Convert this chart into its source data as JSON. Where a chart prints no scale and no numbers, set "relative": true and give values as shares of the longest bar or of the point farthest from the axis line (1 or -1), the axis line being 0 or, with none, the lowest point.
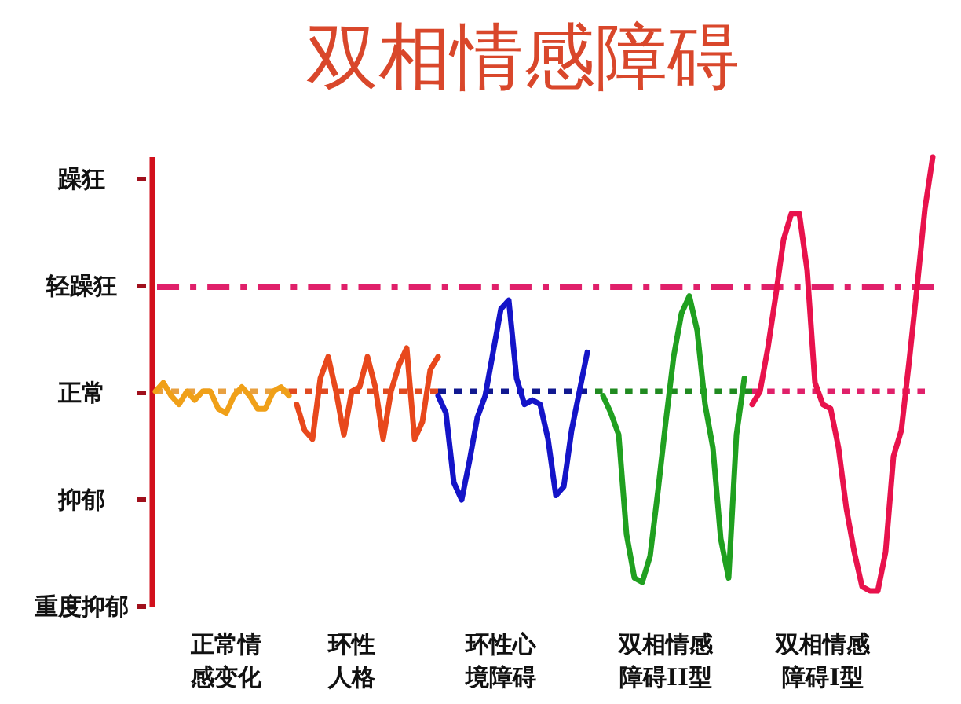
{
  "chart_data": {
    "type": "line",
    "title": "双相情感障碍",
    "relative": true,
    "categories": [
      null,
      null,
      null,
      null,
      null,
      null,
      null,
      null,
      null,
      "正常情感变化",
      null,
      null,
      null,
      null,
      null,
      null,
      null,
      null,
      null,
      null,
      null,
      null,
      null,
      null,
      null,
      "环性人格",
      null,
      null,
      null,
      null,
      null,
      null,
      null,
      null,
      null,
      null,
      null,
      null,
      null,
      null,
      null,
      null,
      null,
      null,
      "环性心境障碍",
      null,
      null,
      null,
      null,
      null,
      null,
      null,
      null,
      null,
      null,
      null,
      null,
      null,
      null,
      null,
      null,
      null,
      null,
      null,
      null,
      "双相情感障碍II型",
      null,
      null,
      null,
      null,
      null,
      null,
      null,
      null,
      null,
      null,
      null,
      null,
      null,
      null,
      null,
      null,
      null,
      null,
      null,
      "双相情感障碍I型",
      null,
      null,
      null,
      null,
      null,
      null,
      null,
      null,
      null,
      null,
      null,
      null,
      null,
      null
    ],
    "annotations": [
      "躁狂",
      "轻躁狂",
      "正常",
      "抑郁",
      "重度抑郁"
    ],
    "ref_lines": [
      {
        "axis": "y",
        "value": 0.7,
        "color": "#e0206a",
        "line_style": "dashdot"
      }
    ],
    "series": [
      {
        "color": "#e8a040",
        "line_style": "dotted",
        "values": [
          0.46,
          0.46,
          0.46,
          0.46,
          0.46,
          0.46,
          0.46,
          0.46,
          0.46,
          0.46,
          0.46,
          0.46,
          0.46,
          0.46,
          0.46,
          0.46,
          0.46,
          0.46,
          null,
          null,
          null,
          null,
          null,
          null,
          null,
          null,
          null,
          null,
          null,
          null,
          null,
          null,
          null,
          null,
          null,
          null,
          null,
          null,
          null,
          null,
          null,
          null,
          null,
          null,
          null,
          null,
          null,
          null,
          null,
          null,
          null,
          null,
          null,
          null,
          null,
          null,
          null,
          null,
          null,
          null,
          null,
          null,
          null,
          null,
          null,
          null,
          null,
          null,
          null,
          null,
          null,
          null,
          null,
          null,
          null,
          null,
          null,
          null,
          null,
          null,
          null,
          null,
          null,
          null,
          null,
          null,
          null,
          null,
          null,
          null,
          null,
          null,
          null,
          null,
          null,
          null,
          null,
          null,
          null,
          null
        ]
      },
      {
        "color": "#e04a20",
        "line_style": "dotted",
        "values": [
          null,
          null,
          null,
          null,
          null,
          null,
          null,
          null,
          null,
          null,
          null,
          null,
          null,
          null,
          null,
          null,
          null,
          0.46,
          0.46,
          0.46,
          0.46,
          0.46,
          0.46,
          0.46,
          0.46,
          0.46,
          0.46,
          0.46,
          0.46,
          0.46,
          0.46,
          0.46,
          0.46,
          0.46,
          0.46,
          0.46,
          0.46,
          null,
          null,
          null,
          null,
          null,
          null,
          null,
          null,
          null,
          null,
          null,
          null,
          null,
          null,
          null,
          null,
          null,
          null,
          null,
          null,
          null,
          null,
          null,
          null,
          null,
          null,
          null,
          null,
          null,
          null,
          null,
          null,
          null,
          null,
          null,
          null,
          null,
          null,
          null,
          null,
          null,
          null,
          null,
          null,
          null,
          null,
          null,
          null,
          null,
          null,
          null,
          null,
          null,
          null,
          null,
          null,
          null,
          null,
          null,
          null,
          null,
          null,
          null
        ]
      },
      {
        "color": "#101890",
        "line_style": "dotted",
        "values": [
          null,
          null,
          null,
          null,
          null,
          null,
          null,
          null,
          null,
          null,
          null,
          null,
          null,
          null,
          null,
          null,
          null,
          null,
          null,
          null,
          null,
          null,
          null,
          null,
          null,
          null,
          null,
          null,
          null,
          null,
          null,
          null,
          null,
          null,
          null,
          null,
          0.46,
          0.46,
          0.46,
          0.46,
          0.46,
          0.46,
          0.46,
          0.46,
          0.46,
          0.46,
          0.46,
          0.46,
          0.46,
          0.46,
          0.46,
          0.46,
          0.46,
          0.46,
          0.46,
          0.46,
          null,
          null,
          null,
          null,
          null,
          null,
          null,
          null,
          null,
          null,
          null,
          null,
          null,
          null,
          null,
          null,
          null,
          null,
          null,
          null,
          null,
          null,
          null,
          null,
          null,
          null,
          null,
          null,
          null,
          null,
          null,
          null,
          null,
          null,
          null,
          null,
          null,
          null,
          null,
          null,
          null,
          null,
          null,
          null
        ]
      },
      {
        "color": "#208a20",
        "line_style": "dotted",
        "values": [
          null,
          null,
          null,
          null,
          null,
          null,
          null,
          null,
          null,
          null,
          null,
          null,
          null,
          null,
          null,
          null,
          null,
          null,
          null,
          null,
          null,
          null,
          null,
          null,
          null,
          null,
          null,
          null,
          null,
          null,
          null,
          null,
          null,
          null,
          null,
          null,
          null,
          null,
          null,
          null,
          null,
          null,
          null,
          null,
          null,
          null,
          null,
          null,
          null,
          null,
          null,
          null,
          null,
          null,
          null,
          null,
          0.46,
          0.46,
          0.46,
          0.46,
          0.46,
          0.46,
          0.46,
          0.46,
          0.46,
          0.46,
          0.46,
          0.46,
          0.46,
          0.46,
          0.46,
          0.46,
          0.46,
          0.46,
          0.46,
          0.46,
          0.46,
          null,
          null,
          null,
          null,
          null,
          null,
          null,
          null,
          null,
          null,
          null,
          null,
          null,
          null,
          null,
          null,
          null,
          null,
          null,
          null,
          null,
          null,
          null
        ]
      },
      {
        "color": "#e0206a",
        "line_style": "dotted",
        "values": [
          null,
          null,
          null,
          null,
          null,
          null,
          null,
          null,
          null,
          null,
          null,
          null,
          null,
          null,
          null,
          null,
          null,
          null,
          null,
          null,
          null,
          null,
          null,
          null,
          null,
          null,
          null,
          null,
          null,
          null,
          null,
          null,
          null,
          null,
          null,
          null,
          null,
          null,
          null,
          null,
          null,
          null,
          null,
          null,
          null,
          null,
          null,
          null,
          null,
          null,
          null,
          null,
          null,
          null,
          null,
          null,
          null,
          null,
          null,
          null,
          null,
          null,
          null,
          null,
          null,
          null,
          null,
          null,
          null,
          null,
          null,
          null,
          null,
          null,
          null,
          null,
          0.46,
          0.46,
          0.46,
          0.46,
          0.46,
          0.46,
          0.46,
          0.46,
          0.46,
          0.46,
          0.46,
          0.46,
          0.46,
          0.46,
          0.46,
          0.46,
          0.46,
          0.46,
          0.46,
          0.46,
          0.46,
          0.46,
          0.46,
          null
        ]
      },
      {
        "color": "#f0a018",
        "values": [
          0.46,
          0.48,
          0.45,
          0.43,
          0.46,
          0.44,
          0.46,
          0.46,
          0.42,
          0.41,
          0.45,
          0.47,
          0.45,
          0.42,
          0.42,
          0.46,
          0.47,
          0.45,
          null,
          null,
          null,
          null,
          null,
          null,
          null,
          null,
          null,
          null,
          null,
          null,
          null,
          null,
          null,
          null,
          null,
          null,
          null,
          null,
          null,
          null,
          null,
          null,
          null,
          null,
          null,
          null,
          null,
          null,
          null,
          null,
          null,
          null,
          null,
          null,
          null,
          null,
          null,
          null,
          null,
          null,
          null,
          null,
          null,
          null,
          null,
          null,
          null,
          null,
          null,
          null,
          null,
          null,
          null,
          null,
          null,
          null,
          null,
          null,
          null,
          null,
          null,
          null,
          null,
          null,
          null,
          null,
          null,
          null,
          null,
          null,
          null,
          null,
          null,
          null,
          null,
          null,
          null,
          null,
          null,
          null
        ]
      },
      {
        "color": "#e8481c",
        "values": [
          null,
          null,
          null,
          null,
          null,
          null,
          null,
          null,
          null,
          null,
          null,
          null,
          null,
          null,
          null,
          null,
          null,
          null,
          0.43,
          0.37,
          0.35,
          0.49,
          0.54,
          0.46,
          0.36,
          0.46,
          0.47,
          0.54,
          0.47,
          0.35,
          0.46,
          0.52,
          0.56,
          0.35,
          0.39,
          0.51,
          0.54,
          null,
          null,
          null,
          null,
          null,
          null,
          null,
          null,
          null,
          null,
          null,
          null,
          null,
          null,
          null,
          null,
          null,
          null,
          null,
          null,
          null,
          null,
          null,
          null,
          null,
          null,
          null,
          null,
          null,
          null,
          null,
          null,
          null,
          null,
          null,
          null,
          null,
          null,
          null,
          null,
          null,
          null,
          null,
          null,
          null,
          null,
          null,
          null,
          null,
          null,
          null,
          null,
          null,
          null,
          null,
          null,
          null,
          null,
          null,
          null,
          null,
          null,
          null
        ]
      },
      {
        "color": "#1414c8",
        "values": [
          null,
          null,
          null,
          null,
          null,
          null,
          null,
          null,
          null,
          null,
          null,
          null,
          null,
          null,
          null,
          null,
          null,
          null,
          null,
          null,
          null,
          null,
          null,
          null,
          null,
          null,
          null,
          null,
          null,
          null,
          null,
          null,
          null,
          null,
          null,
          null,
          0.45,
          0.41,
          0.25,
          0.21,
          0.3,
          0.4,
          0.45,
          0.55,
          0.65,
          0.67,
          0.49,
          0.43,
          0.44,
          0.43,
          0.35,
          0.22,
          0.24,
          0.37,
          0.46,
          0.55,
          null,
          null,
          null,
          null,
          null,
          null,
          null,
          null,
          null,
          null,
          null,
          null,
          null,
          null,
          null,
          null,
          null,
          null,
          null,
          null,
          null,
          null,
          null,
          null,
          null,
          null,
          null,
          null,
          null,
          null,
          null,
          null,
          null,
          null,
          null,
          null,
          null,
          null,
          null,
          null,
          null,
          null,
          null,
          null
        ]
      },
      {
        "color": "#20a020",
        "values": [
          null,
          null,
          null,
          null,
          null,
          null,
          null,
          null,
          null,
          null,
          null,
          null,
          null,
          null,
          null,
          null,
          null,
          null,
          null,
          null,
          null,
          null,
          null,
          null,
          null,
          null,
          null,
          null,
          null,
          null,
          null,
          null,
          null,
          null,
          null,
          null,
          null,
          null,
          null,
          null,
          null,
          null,
          null,
          null,
          null,
          null,
          null,
          null,
          null,
          null,
          null,
          null,
          null,
          null,
          null,
          null,
          null,
          0.45,
          0.41,
          0.36,
          0.13,
          0.03,
          0.02,
          0.08,
          0.23,
          0.39,
          0.54,
          0.64,
          0.68,
          0.6,
          0.43,
          0.33,
          0.12,
          0.03,
          0.36,
          0.49,
          null,
          null,
          null,
          null,
          null,
          null,
          null,
          null,
          null,
          null,
          null,
          null,
          null,
          null,
          null,
          null,
          null,
          null,
          null,
          null,
          null,
          null,
          null,
          null
        ]
      },
      {
        "color": "#e8124c",
        "values": [
          null,
          null,
          null,
          null,
          null,
          null,
          null,
          null,
          null,
          null,
          null,
          null,
          null,
          null,
          null,
          null,
          null,
          null,
          null,
          null,
          null,
          null,
          null,
          null,
          null,
          null,
          null,
          null,
          null,
          null,
          null,
          null,
          null,
          null,
          null,
          null,
          null,
          null,
          null,
          null,
          null,
          null,
          null,
          null,
          null,
          null,
          null,
          null,
          null,
          null,
          null,
          null,
          null,
          null,
          null,
          null,
          null,
          null,
          null,
          null,
          null,
          null,
          null,
          null,
          null,
          null,
          null,
          null,
          null,
          null,
          null,
          null,
          null,
          null,
          null,
          null,
          0.43,
          0.46,
          0.56,
          0.68,
          0.81,
          0.87,
          0.87,
          0.74,
          0.48,
          0.43,
          0.42,
          0.33,
          0.19,
          0.09,
          0.01,
          0,
          0,
          0.09,
          0.31,
          0.37,
          0.53,
          0.7,
          0.88,
          1
        ]
      }
    ]
  }
}
